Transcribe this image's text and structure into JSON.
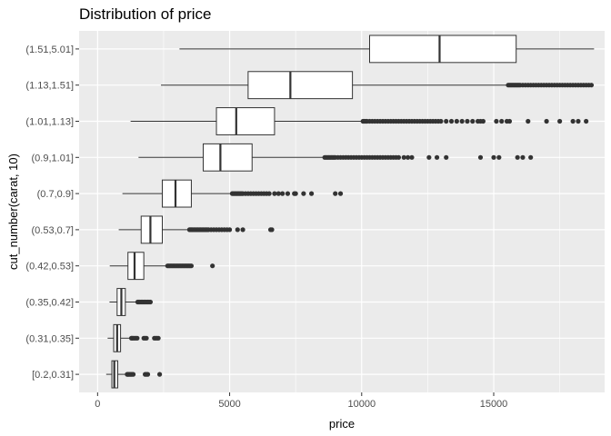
{
  "chart_data": {
    "type": "boxplot",
    "orientation": "horizontal",
    "title": "Distribution of price",
    "xlabel": "price",
    "ylabel": "cut_number(carat, 10)",
    "xlim": [
      -700,
      19200
    ],
    "xticks": [
      0,
      5000,
      10000,
      15000
    ],
    "xtick_labels": [
      "0",
      "5000",
      "10000",
      "15000"
    ],
    "grid": true,
    "legend": "none",
    "colors": {
      "panel": "#ebebeb",
      "grid_major": "#ffffff",
      "box_fill": "#ffffff",
      "box_line": "#333333",
      "outlier": "#333333"
    },
    "categories": [
      "[0.2,0.31]",
      "(0.31,0.35]",
      "(0.35,0.42]",
      "(0.42,0.53]",
      "(0.53,0.7]",
      "(0.7,0.9]",
      "(0.9,1.01]",
      "(1.01,1.13]",
      "(1.13,1.51]",
      "(1.51,5.01]"
    ],
    "boxes": [
      {
        "category": "[0.2,0.31]",
        "whisker_low": 326,
        "q1": 540,
        "median": 632,
        "q3": 763,
        "whisker_high": 1093,
        "outliers": [
          1120,
          1150,
          1180,
          1220,
          1260,
          1300,
          1350,
          1800,
          1850,
          1900,
          2350
        ]
      },
      {
        "category": "(0.31,0.35]",
        "whisker_low": 380,
        "q1": 610,
        "median": 740,
        "q3": 870,
        "whisker_high": 1250,
        "outliers": [
          1280,
          1310,
          1350,
          1400,
          1450,
          1500,
          1750,
          1800,
          1850,
          2150,
          2200,
          2250,
          2300
        ]
      },
      {
        "category": "(0.35,0.42]",
        "whisker_low": 450,
        "q1": 740,
        "median": 900,
        "q3": 1050,
        "whisker_high": 1500,
        "outliers": [
          1520,
          1560,
          1600,
          1650,
          1700,
          1750,
          1800,
          1850,
          1900,
          1950,
          2000
        ]
      },
      {
        "category": "(0.42,0.53]",
        "whisker_low": 460,
        "q1": 1150,
        "median": 1400,
        "q3": 1750,
        "whisker_high": 2600,
        "outliers": [
          2650,
          2700,
          2750,
          2800,
          2850,
          2900,
          2950,
          3000,
          3050,
          3100,
          3150,
          3200,
          3250,
          3300,
          3350,
          3400,
          3450,
          3500,
          3550,
          4350
        ]
      },
      {
        "category": "(0.53,0.7]",
        "whisker_low": 800,
        "q1": 1650,
        "median": 2000,
        "q3": 2450,
        "whisker_high": 3450,
        "outliers": [
          3480,
          3520,
          3560,
          3600,
          3650,
          3700,
          3750,
          3800,
          3850,
          3900,
          3950,
          4000,
          4050,
          4100,
          4150,
          4200,
          4300,
          4400,
          4500,
          4600,
          4700,
          4800,
          4900,
          5000,
          5300,
          5500,
          6550,
          6600
        ]
      },
      {
        "category": "(0.7,0.9]",
        "whisker_low": 940,
        "q1": 2450,
        "median": 2950,
        "q3": 3550,
        "whisker_high": 5050,
        "outliers": [
          5100,
          5150,
          5200,
          5250,
          5300,
          5350,
          5400,
          5450,
          5500,
          5600,
          5700,
          5800,
          5900,
          6000,
          6100,
          6200,
          6300,
          6400,
          6500,
          6700,
          6850,
          7000,
          7200,
          7450,
          7500,
          7800,
          8100,
          9000,
          9200
        ]
      },
      {
        "category": "(0.9,1.01]",
        "whisker_low": 1550,
        "q1": 4000,
        "median": 4650,
        "q3": 5850,
        "whisker_high": 8550,
        "outliers": [
          8600,
          8650,
          8700,
          8750,
          8800,
          8850,
          8900,
          8950,
          9000,
          9100,
          9200,
          9300,
          9400,
          9500,
          9600,
          9700,
          9800,
          9900,
          10000,
          10100,
          10200,
          10300,
          10400,
          10500,
          10600,
          10700,
          10800,
          10900,
          11000,
          11100,
          11200,
          11300,
          11400,
          11600,
          11750,
          11900,
          12550,
          12850,
          13200,
          14500,
          15000,
          15200,
          15900,
          16100,
          16400
        ]
      },
      {
        "category": "(1.01,1.13]",
        "whisker_low": 1250,
        "q1": 4500,
        "median": 5250,
        "q3": 6700,
        "whisker_high": 10000,
        "outliers": [
          10050,
          10100,
          10150,
          10200,
          10300,
          10400,
          10500,
          10600,
          10700,
          10800,
          10900,
          11000,
          11100,
          11200,
          11300,
          11400,
          11500,
          11600,
          11700,
          11800,
          11900,
          12000,
          12100,
          12200,
          12300,
          12400,
          12500,
          12600,
          12700,
          12800,
          12900,
          13000,
          13200,
          13400,
          13600,
          13800,
          14000,
          14200,
          14400,
          14500,
          14600,
          15100,
          15300,
          15500,
          15600,
          16300,
          17000,
          17500,
          18000,
          18200,
          18500
        ]
      },
      {
        "category": "(1.13,1.51]",
        "whisker_low": 2400,
        "q1": 5700,
        "median": 7300,
        "q3": 9650,
        "whisker_high": 15500,
        "outliers": [
          15550,
          15600,
          15650,
          15700,
          15750,
          15800,
          15850,
          15900,
          15950,
          16000,
          16100,
          16200,
          16300,
          16400,
          16500,
          16600,
          16700,
          16800,
          16900,
          17000,
          17100,
          17200,
          17300,
          17400,
          17500,
          17600,
          17700,
          17800,
          17900,
          18000,
          18100,
          18200,
          18300,
          18400,
          18500,
          18600,
          18700
        ]
      },
      {
        "category": "(1.51,5.01]",
        "whisker_low": 3100,
        "q1": 10300,
        "median": 12950,
        "q3": 15850,
        "whisker_high": 18800,
        "outliers": []
      }
    ]
  }
}
